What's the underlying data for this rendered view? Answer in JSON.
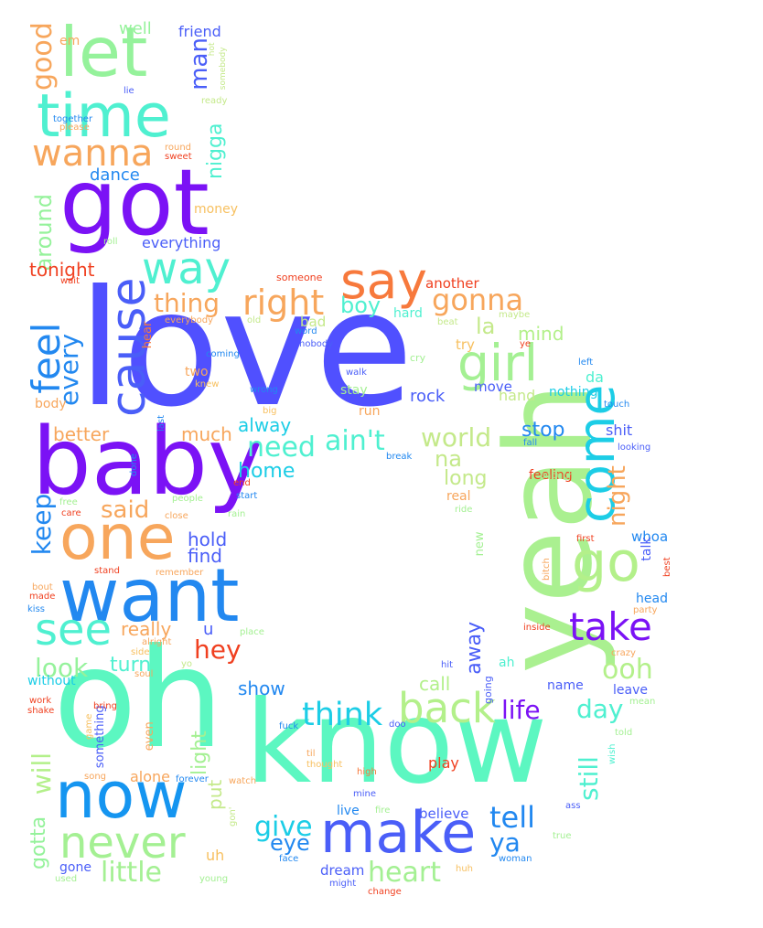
{
  "words": [
    {
      "text": "love",
      "color": "#5050ff"
    },
    {
      "text": "oh",
      "color": "#5cf7c1"
    },
    {
      "text": "know",
      "color": "#5cf7c1"
    },
    {
      "text": "yeah",
      "color": "#aaf090"
    },
    {
      "text": "baby",
      "color": "#7b12f5"
    },
    {
      "text": "got",
      "color": "#7b12f5"
    },
    {
      "text": "time",
      "color": "#4ff0d0"
    },
    {
      "text": "let",
      "color": "#95f29b"
    },
    {
      "text": "want",
      "color": "#2288f0"
    },
    {
      "text": "one",
      "color": "#f7a65c"
    },
    {
      "text": "now",
      "color": "#1595f0"
    },
    {
      "text": "make",
      "color": "#4a5ef8"
    },
    {
      "text": "go",
      "color": "#b3f08a"
    },
    {
      "text": "come",
      "color": "#1ccde6"
    },
    {
      "text": "girl",
      "color": "#a4f093"
    },
    {
      "text": "cause",
      "color": "#4a5ef8"
    },
    {
      "text": "never",
      "color": "#a4f093"
    },
    {
      "text": "say",
      "color": "#f7793c"
    },
    {
      "text": "take",
      "color": "#7b12f5"
    },
    {
      "text": "way",
      "color": "#4ff0d0"
    },
    {
      "text": "see",
      "color": "#4ff0d0"
    },
    {
      "text": "back",
      "color": "#b3f08a"
    },
    {
      "text": "wanna",
      "color": "#f7a65c"
    },
    {
      "text": "feel",
      "color": "#2288f0"
    },
    {
      "text": "right",
      "color": "#f7a65c"
    },
    {
      "text": "gonna",
      "color": "#f7a65c"
    },
    {
      "text": "think",
      "color": "#1ccde6"
    },
    {
      "text": "tell",
      "color": "#2288f0"
    },
    {
      "text": "heart",
      "color": "#a4f093"
    },
    {
      "text": "ain't",
      "color": "#4ff0d0"
    },
    {
      "text": "need",
      "color": "#4ff0d0"
    },
    {
      "text": "life",
      "color": "#7b12f5"
    },
    {
      "text": "world",
      "color": "#c4e98a"
    },
    {
      "text": "give",
      "color": "#1ccde6"
    },
    {
      "text": "hey",
      "color": "#f04020"
    },
    {
      "text": "ooh",
      "color": "#b3f08a"
    },
    {
      "text": "night",
      "color": "#f7a65c"
    },
    {
      "text": "look",
      "color": "#95f29b"
    },
    {
      "text": "little",
      "color": "#a4f093"
    },
    {
      "text": "thing",
      "color": "#f7a65c"
    },
    {
      "text": "good",
      "color": "#f7a65c"
    },
    {
      "text": "every",
      "color": "#2288f0"
    },
    {
      "text": "keep",
      "color": "#2288f0"
    },
    {
      "text": "will",
      "color": "#b3f08a"
    },
    {
      "text": "said",
      "color": "#f7a65c"
    },
    {
      "text": "man",
      "color": "#4a5ef8"
    },
    {
      "text": "day",
      "color": "#4ff0d0"
    },
    {
      "text": "eye",
      "color": "#2288f0"
    },
    {
      "text": "boy",
      "color": "#4ff0d0"
    },
    {
      "text": "la",
      "color": "#c4e98a"
    },
    {
      "text": "still",
      "color": "#4ff0d0"
    },
    {
      "text": "away",
      "color": "#4a5ef8"
    },
    {
      "text": "na",
      "color": "#c4e98a"
    },
    {
      "text": "long",
      "color": "#c4e98a"
    },
    {
      "text": "ya",
      "color": "#2288f0"
    },
    {
      "text": "really",
      "color": "#f7a65c"
    },
    {
      "text": "much",
      "color": "#f7a65c"
    },
    {
      "text": "turn",
      "color": "#4ff0d0"
    },
    {
      "text": "nigga",
      "color": "#4ff0d0"
    },
    {
      "text": "around",
      "color": "#95f29b"
    },
    {
      "text": "tonight",
      "color": "#f04020"
    },
    {
      "text": "gotta",
      "color": "#95f29b"
    },
    {
      "text": "hold",
      "color": "#4a5ef8"
    },
    {
      "text": "stop",
      "color": "#2288f0"
    },
    {
      "text": "alway",
      "color": "#1ccde6"
    },
    {
      "text": "home",
      "color": "#1ccde6"
    },
    {
      "text": "call",
      "color": "#b3f08a"
    },
    {
      "text": "better",
      "color": "#f7a65c"
    },
    {
      "text": "show",
      "color": "#2288f0"
    },
    {
      "text": "find",
      "color": "#4a5ef8"
    },
    {
      "text": "mind",
      "color": "#b3f08a"
    },
    {
      "text": "put",
      "color": "#c4e98a"
    },
    {
      "text": "light",
      "color": "#a4f093"
    },
    {
      "text": "dance",
      "color": "#2288f0"
    },
    {
      "text": "well",
      "color": "#95f29b"
    },
    {
      "text": "friend",
      "color": "#4a5ef8"
    },
    {
      "text": "everything",
      "color": "#4a5ef8"
    },
    {
      "text": "em",
      "color": "#f7a65c"
    },
    {
      "text": "u",
      "color": "#4a5ef8"
    },
    {
      "text": "hand",
      "color": "#c4e98a"
    },
    {
      "text": "rock",
      "color": "#4a5ef8"
    },
    {
      "text": "da",
      "color": "#4ff0d0"
    },
    {
      "text": "nothing",
      "color": "#1ccde6"
    },
    {
      "text": "shit",
      "color": "#4a5ef8"
    },
    {
      "text": "whoa",
      "color": "#2288f0"
    },
    {
      "text": "head",
      "color": "#2288f0"
    },
    {
      "text": "leave",
      "color": "#4a5ef8"
    },
    {
      "text": "name",
      "color": "#4a5ef8"
    },
    {
      "text": "alone",
      "color": "#f7a65c"
    },
    {
      "text": "believe",
      "color": "#4a5ef8"
    },
    {
      "text": "dream",
      "color": "#4a5ef8"
    },
    {
      "text": "uh",
      "color": "#f7c060"
    },
    {
      "text": "gone",
      "color": "#4a5ef8"
    },
    {
      "text": "play",
      "color": "#f04020"
    },
    {
      "text": "live",
      "color": "#2288f0"
    },
    {
      "text": "move",
      "color": "#4a5ef8"
    },
    {
      "text": "talk",
      "color": "#4a5ef8"
    },
    {
      "text": "feeling",
      "color": "#f04020"
    },
    {
      "text": "real",
      "color": "#f7a65c"
    },
    {
      "text": "try",
      "color": "#f7c060"
    },
    {
      "text": "hard",
      "color": "#4ff0d0"
    },
    {
      "text": "stay",
      "color": "#a4f093"
    },
    {
      "text": "run",
      "color": "#f7a65c"
    },
    {
      "text": "ah",
      "color": "#4ff0d0"
    },
    {
      "text": "bad",
      "color": "#c4e98a"
    },
    {
      "text": "another",
      "color": "#f04020"
    },
    {
      "text": "without",
      "color": "#1ccde6"
    },
    {
      "text": "body",
      "color": "#f7a65c"
    },
    {
      "text": "two",
      "color": "#f7a65c"
    },
    {
      "text": "money",
      "color": "#f7c060"
    },
    {
      "text": "even",
      "color": "#f7a65c"
    },
    {
      "text": "new",
      "color": "#a4f093"
    },
    {
      "text": "something",
      "color": "#4a5ef8"
    },
    {
      "text": "hear",
      "color": "#f7793c"
    },
    {
      "text": "going",
      "color": "#4a5ef8"
    },
    {
      "text": "lie",
      "color": "#4a5ef8"
    },
    {
      "text": "together",
      "color": "#2288f0"
    },
    {
      "text": "please",
      "color": "#f7a65c"
    },
    {
      "text": "round",
      "color": "#f7a65c"
    },
    {
      "text": "sweet",
      "color": "#f04020"
    },
    {
      "text": "ready",
      "color": "#c4e98a"
    },
    {
      "text": "hot",
      "color": "#c4e98a"
    },
    {
      "text": "somebody",
      "color": "#c4e98a"
    },
    {
      "text": "roll",
      "color": "#a4f093"
    },
    {
      "text": "wait",
      "color": "#f04020"
    },
    {
      "text": "someone",
      "color": "#f04020"
    },
    {
      "text": "everybody",
      "color": "#f7a65c"
    },
    {
      "text": "old",
      "color": "#c4e98a"
    },
    {
      "text": "beat",
      "color": "#c4e98a"
    },
    {
      "text": "maybe",
      "color": "#c4e98a"
    },
    {
      "text": "word",
      "color": "#2288f0"
    },
    {
      "text": "nobody",
      "color": "#4a5ef8"
    },
    {
      "text": "ye",
      "color": "#f04020"
    },
    {
      "text": "coming",
      "color": "#2288f0"
    },
    {
      "text": "cry",
      "color": "#a4f093"
    },
    {
      "text": "left",
      "color": "#2288f0"
    },
    {
      "text": "walk",
      "color": "#4a5ef8"
    },
    {
      "text": "knew",
      "color": "#f7c060"
    },
    {
      "text": "wrong",
      "color": "#2288f0"
    },
    {
      "text": "touch",
      "color": "#2288f0"
    },
    {
      "text": "big",
      "color": "#f7c060"
    },
    {
      "text": "last",
      "color": "#2288f0"
    },
    {
      "text": "fall",
      "color": "#2288f0"
    },
    {
      "text": "break",
      "color": "#2288f0"
    },
    {
      "text": "looking",
      "color": "#4a5ef8"
    },
    {
      "text": "done",
      "color": "#2288f0"
    },
    {
      "text": "end",
      "color": "#f04020"
    },
    {
      "text": "enough",
      "color": "#a4f093"
    },
    {
      "text": "start",
      "color": "#2288f0"
    },
    {
      "text": "free",
      "color": "#a4f093"
    },
    {
      "text": "people",
      "color": "#a4f093"
    },
    {
      "text": "care",
      "color": "#f04020"
    },
    {
      "text": "close",
      "color": "#f7a65c"
    },
    {
      "text": "rain",
      "color": "#a4f093"
    },
    {
      "text": "ride",
      "color": "#a4f093"
    },
    {
      "text": "first",
      "color": "#f04020"
    },
    {
      "text": "bitch",
      "color": "#f7a65c"
    },
    {
      "text": "best",
      "color": "#f04020"
    },
    {
      "text": "stand",
      "color": "#f04020"
    },
    {
      "text": "remember",
      "color": "#f7a65c"
    },
    {
      "text": "bout",
      "color": "#f7a65c"
    },
    {
      "text": "made",
      "color": "#f04020"
    },
    {
      "text": "kiss",
      "color": "#2288f0"
    },
    {
      "text": "place",
      "color": "#a4f093"
    },
    {
      "text": "party",
      "color": "#f7a65c"
    },
    {
      "text": "inside",
      "color": "#f04020"
    },
    {
      "text": "alright",
      "color": "#f7a65c"
    },
    {
      "text": "side",
      "color": "#f7c060"
    },
    {
      "text": "soul",
      "color": "#f7a65c"
    },
    {
      "text": "yo",
      "color": "#c4e98a"
    },
    {
      "text": "crazy",
      "color": "#f7a65c"
    },
    {
      "text": "hit",
      "color": "#4a5ef8"
    },
    {
      "text": "work",
      "color": "#f04020"
    },
    {
      "text": "shake",
      "color": "#f04020"
    },
    {
      "text": "bring",
      "color": "#f04020"
    },
    {
      "text": "mean",
      "color": "#a4f093"
    },
    {
      "text": "game",
      "color": "#f7c060"
    },
    {
      "text": "fuck",
      "color": "#2288f0"
    },
    {
      "text": "doo",
      "color": "#4a5ef8"
    },
    {
      "text": "told",
      "color": "#a4f093"
    },
    {
      "text": "til",
      "color": "#f7a65c"
    },
    {
      "text": "wish",
      "color": "#4ff0d0"
    },
    {
      "text": "thought",
      "color": "#f7c060"
    },
    {
      "text": "song",
      "color": "#f7a65c"
    },
    {
      "text": "forever",
      "color": "#2288f0"
    },
    {
      "text": "watch",
      "color": "#f7a65c"
    },
    {
      "text": "high",
      "color": "#f7793c"
    },
    {
      "text": "mine",
      "color": "#4a5ef8"
    },
    {
      "text": "gon'",
      "color": "#c4e98a"
    },
    {
      "text": "fire",
      "color": "#a4f093"
    },
    {
      "text": "ass",
      "color": "#4a5ef8"
    },
    {
      "text": "true",
      "color": "#a4f093"
    },
    {
      "text": "face",
      "color": "#2288f0"
    },
    {
      "text": "woman",
      "color": "#2288f0"
    },
    {
      "text": "used",
      "color": "#a4f093"
    },
    {
      "text": "young",
      "color": "#a4f093"
    },
    {
      "text": "might",
      "color": "#4a5ef8"
    },
    {
      "text": "huh",
      "color": "#f7c060"
    },
    {
      "text": "change",
      "color": "#f04020"
    },
    {
      "text": "music",
      "color": "#f04020"
    }
  ]
}
